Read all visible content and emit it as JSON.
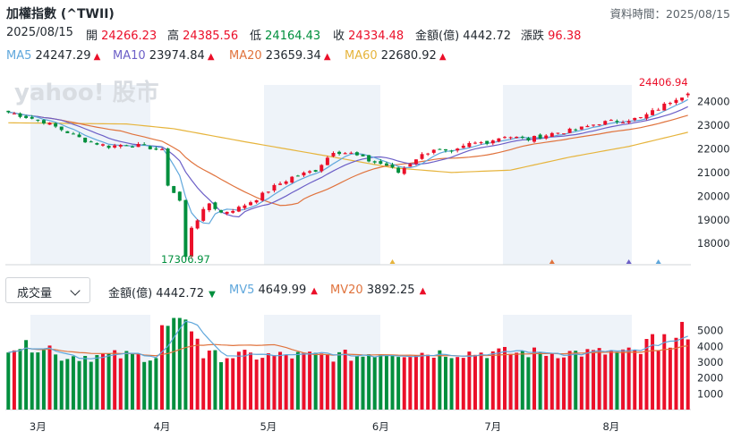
{
  "header": {
    "title": "加權指數 (^TWII)",
    "asof_label": "資料時間：2025/08/15",
    "date": "2025/08/15",
    "open_label": "開",
    "open": "24266.23",
    "high_label": "高",
    "high": "24385.56",
    "low_label": "低",
    "low": "24164.43",
    "close_label": "收",
    "close": "24334.48",
    "amount_label": "金額(億)",
    "amount": "4442.72",
    "change_label": "漲跌",
    "change": "96.38"
  },
  "ma_legend": [
    {
      "label": "MA5",
      "value": "24247.29",
      "color": "#5fa7dc",
      "trend": "▲"
    },
    {
      "label": "MA10",
      "value": "23974.84",
      "color": "#6c5fc7",
      "trend": "▲"
    },
    {
      "label": "MA20",
      "value": "23659.34",
      "color": "#e0733d",
      "trend": "▲"
    },
    {
      "label": "MA60",
      "value": "22680.92",
      "color": "#e6b43c",
      "trend": "▲"
    }
  ],
  "volume_panel": {
    "selector_value": "成交量",
    "amount_label": "金額(億)",
    "amount": "4442.72",
    "amount_trend": "▼",
    "mv5_label": "MV5",
    "mv5": "4649.99",
    "mv5_trend": "▲",
    "mv20_label": "MV20",
    "mv20": "3892.25",
    "mv20_trend": "▲"
  },
  "watermark": "yahoo! 股市",
  "colors": {
    "up": "#eb0f29",
    "down": "#008f3d",
    "ma5": "#5fa7dc",
    "ma10": "#6c5fc7",
    "ma20": "#e0733d",
    "ma60": "#e6b43c",
    "band": "#eef3f9"
  },
  "chart_data": [
    {
      "type": "candlestick",
      "price_axis_ticks": [
        18000,
        19000,
        20000,
        21000,
        22000,
        23000,
        24000
      ],
      "ylim": [
        17100,
        24700
      ],
      "x_labels": [
        "3月",
        "4月",
        "5月",
        "6月",
        "7月",
        "8月"
      ],
      "annotations": [
        {
          "text": "24406.94",
          "value": 24406.94,
          "kind": "high"
        },
        {
          "text": "17306.97",
          "value": 17306.97,
          "kind": "low"
        }
      ],
      "close_keypoints": [
        [
          0,
          23550
        ],
        [
          6,
          23150
        ],
        [
          10,
          22700
        ],
        [
          13,
          22350
        ],
        [
          17,
          22100
        ],
        [
          20,
          22200
        ],
        [
          24,
          22050
        ],
        [
          26,
          21900
        ],
        [
          27,
          20500
        ],
        [
          29,
          19800
        ],
        [
          30,
          17400
        ],
        [
          31,
          18700
        ],
        [
          34,
          19700
        ],
        [
          36,
          19300
        ],
        [
          39,
          19500
        ],
        [
          42,
          19900
        ],
        [
          45,
          20400
        ],
        [
          48,
          20800
        ],
        [
          52,
          21100
        ],
        [
          55,
          21900
        ],
        [
          58,
          21800
        ],
        [
          61,
          21500
        ],
        [
          64,
          21300
        ],
        [
          66,
          21000
        ],
        [
          69,
          21600
        ],
        [
          72,
          22000
        ],
        [
          75,
          21800
        ],
        [
          78,
          22200
        ],
        [
          81,
          22300
        ],
        [
          84,
          22550
        ],
        [
          88,
          22400
        ],
        [
          92,
          22650
        ],
        [
          96,
          22800
        ],
        [
          100,
          23100
        ],
        [
          104,
          23200
        ],
        [
          107,
          23300
        ],
        [
          110,
          23700
        ],
        [
          113,
          24150
        ],
        [
          115,
          24334.48
        ]
      ],
      "ma60_keypoints": [
        [
          0,
          23100
        ],
        [
          20,
          23050
        ],
        [
          28,
          22850
        ],
        [
          40,
          22300
        ],
        [
          55,
          21650
        ],
        [
          65,
          21200
        ],
        [
          75,
          21000
        ],
        [
          85,
          21100
        ],
        [
          95,
          21650
        ],
        [
          105,
          22100
        ],
        [
          115,
          22700
        ]
      ]
    },
    {
      "type": "bar",
      "name": "volume",
      "ylim": [
        0,
        6000
      ],
      "y_ticks": [
        1000,
        2000,
        3000,
        4000,
        5000
      ],
      "mv5_last": 4649.99,
      "mv20_last": 3892.25
    }
  ]
}
